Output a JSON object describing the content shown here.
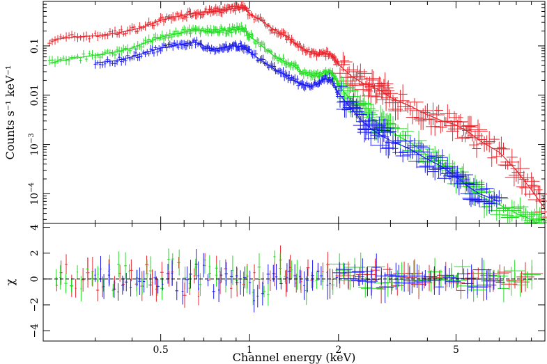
{
  "chart_data": [
    {
      "type": "scatter",
      "panel": "spectrum",
      "ylabel": "Counts s⁻¹ keV⁻¹",
      "y_scale": "log",
      "x_scale": "log",
      "xlim": [
        0.2,
        10
      ],
      "ylim": [
        2.5e-05,
        0.8
      ],
      "y_ticks": [
        {
          "value": 0.1,
          "label": "0.1"
        },
        {
          "value": 0.01,
          "label": "0.01"
        },
        {
          "value": 0.001,
          "base": "10",
          "exp": "−3"
        },
        {
          "value": 0.0001,
          "base": "10",
          "exp": "−4"
        }
      ],
      "series": [
        {
          "color": "#e8242b",
          "x": [
            0.21,
            0.25,
            0.3,
            0.35,
            0.4,
            0.45,
            0.5,
            0.55,
            0.6,
            0.65,
            0.7,
            0.75,
            0.8,
            0.85,
            0.9,
            0.95,
            1.0,
            1.1,
            1.2,
            1.3,
            1.4,
            1.5,
            1.6,
            1.7,
            1.8,
            1.9,
            2.0,
            2.2,
            2.4,
            2.6,
            2.8,
            3.0,
            3.5,
            4.0,
            4.5,
            5.0,
            5.5,
            6.0,
            7.0,
            8.0,
            9.0,
            10.0
          ],
          "y": [
            0.13,
            0.15,
            0.16,
            0.18,
            0.21,
            0.26,
            0.33,
            0.38,
            0.42,
            0.46,
            0.48,
            0.5,
            0.52,
            0.55,
            0.58,
            0.6,
            0.45,
            0.32,
            0.22,
            0.17,
            0.12,
            0.09,
            0.075,
            0.065,
            0.07,
            0.065,
            0.042,
            0.025,
            0.018,
            0.015,
            0.012,
            0.009,
            0.006,
            0.004,
            0.003,
            0.0025,
            0.0018,
            0.0012,
            0.0007,
            0.0003,
            0.00012,
            5e-05
          ]
        },
        {
          "color": "#22dd22",
          "x": [
            0.21,
            0.25,
            0.3,
            0.35,
            0.4,
            0.45,
            0.5,
            0.55,
            0.6,
            0.65,
            0.7,
            0.75,
            0.8,
            0.85,
            0.9,
            0.95,
            1.0,
            1.1,
            1.2,
            1.3,
            1.4,
            1.5,
            1.6,
            1.7,
            1.8,
            1.9,
            2.0,
            2.2,
            2.4,
            2.6,
            2.8,
            3.0,
            3.5,
            4.0,
            4.5,
            5.0,
            5.5,
            6.0,
            7.0,
            8.0,
            9.0,
            10.0
          ],
          "y": [
            0.045,
            0.055,
            0.065,
            0.075,
            0.09,
            0.12,
            0.15,
            0.17,
            0.19,
            0.21,
            0.2,
            0.19,
            0.2,
            0.21,
            0.22,
            0.23,
            0.16,
            0.1,
            0.065,
            0.05,
            0.04,
            0.03,
            0.026,
            0.024,
            0.03,
            0.028,
            0.016,
            0.008,
            0.0045,
            0.0032,
            0.0025,
            0.0018,
            0.0011,
            0.0006,
            0.0004,
            0.00025,
            0.00014,
            9e-05,
            6e-05,
            4e-05,
            3e-05,
            2e-05
          ]
        },
        {
          "color": "#1a1aee",
          "x": [
            0.3,
            0.35,
            0.4,
            0.45,
            0.5,
            0.55,
            0.6,
            0.65,
            0.7,
            0.75,
            0.8,
            0.85,
            0.9,
            0.95,
            1.0,
            1.1,
            1.2,
            1.3,
            1.4,
            1.5,
            1.6,
            1.7,
            1.8,
            1.9,
            2.0,
            2.2,
            2.4,
            2.6,
            2.8,
            3.0,
            3.5,
            4.0,
            4.5,
            5.0,
            5.5,
            6.0,
            7.0
          ],
          "y": [
            0.045,
            0.05,
            0.06,
            0.075,
            0.09,
            0.1,
            0.11,
            0.12,
            0.1,
            0.085,
            0.09,
            0.095,
            0.1,
            0.095,
            0.075,
            0.05,
            0.035,
            0.027,
            0.02,
            0.017,
            0.015,
            0.017,
            0.022,
            0.02,
            0.011,
            0.0055,
            0.003,
            0.002,
            0.0015,
            0.0012,
            0.0008,
            0.0005,
            0.00035,
            0.00022,
            0.00014,
            0.0001,
            7e-05
          ]
        }
      ]
    },
    {
      "type": "scatter",
      "panel": "residuals",
      "xlabel": "Channel energy (keV)",
      "ylabel": "χ",
      "x_scale": "log",
      "xlim": [
        0.2,
        10
      ],
      "ylim": [
        -4.8,
        4.3
      ],
      "y_ticks": [
        {
          "value": 4,
          "label": "4"
        },
        {
          "value": 2,
          "label": "2"
        },
        {
          "value": 0,
          "label": "0"
        },
        {
          "value": -2,
          "label": "−2"
        },
        {
          "value": -4,
          "label": "−4"
        }
      ],
      "x_ticks": [
        {
          "value": 0.5,
          "label": "0.5"
        },
        {
          "value": 1,
          "label": "1"
        },
        {
          "value": 2,
          "label": "2"
        },
        {
          "value": 5,
          "label": "5"
        }
      ],
      "series": [
        {
          "color": "#e8242b",
          "x": [
            0.22,
            0.3,
            0.4,
            0.5,
            0.6,
            0.7,
            0.8,
            0.9,
            1.0,
            1.2,
            1.5,
            2.0,
            3.0,
            4.0,
            5.0,
            7.0,
            9.0
          ],
          "y": [
            -1.5,
            1.2,
            -0.8,
            1.5,
            -1.8,
            2.2,
            -1.0,
            0.9,
            -2.5,
            1.4,
            -0.6,
            1.1,
            -0.9,
            0.4,
            -1.2,
            0.8,
            -0.6
          ]
        },
        {
          "color": "#22dd22",
          "x": [
            0.22,
            0.3,
            0.4,
            0.5,
            0.6,
            0.7,
            0.8,
            0.9,
            1.0,
            1.2,
            1.5,
            2.0,
            3.0,
            4.0,
            5.0,
            7.0,
            9.0
          ],
          "y": [
            0.8,
            -1.1,
            1.6,
            -0.9,
            2.0,
            -1.4,
            1.1,
            -2.2,
            1.3,
            -0.7,
            1.5,
            -1.2,
            0.6,
            -0.8,
            1.5,
            -1.0,
            0.7
          ]
        },
        {
          "color": "#1a1aee",
          "x": [
            0.3,
            0.4,
            0.5,
            0.6,
            0.7,
            0.8,
            0.9,
            1.0,
            1.2,
            1.5,
            2.0,
            3.0,
            4.0,
            5.0,
            7.0
          ],
          "y": [
            1.2,
            -1.5,
            0.9,
            -1.8,
            1.4,
            -0.6,
            2.1,
            -1.3,
            0.8,
            -1.1,
            1.3,
            -0.5,
            1.0,
            -0.9,
            0.6
          ]
        }
      ]
    }
  ]
}
